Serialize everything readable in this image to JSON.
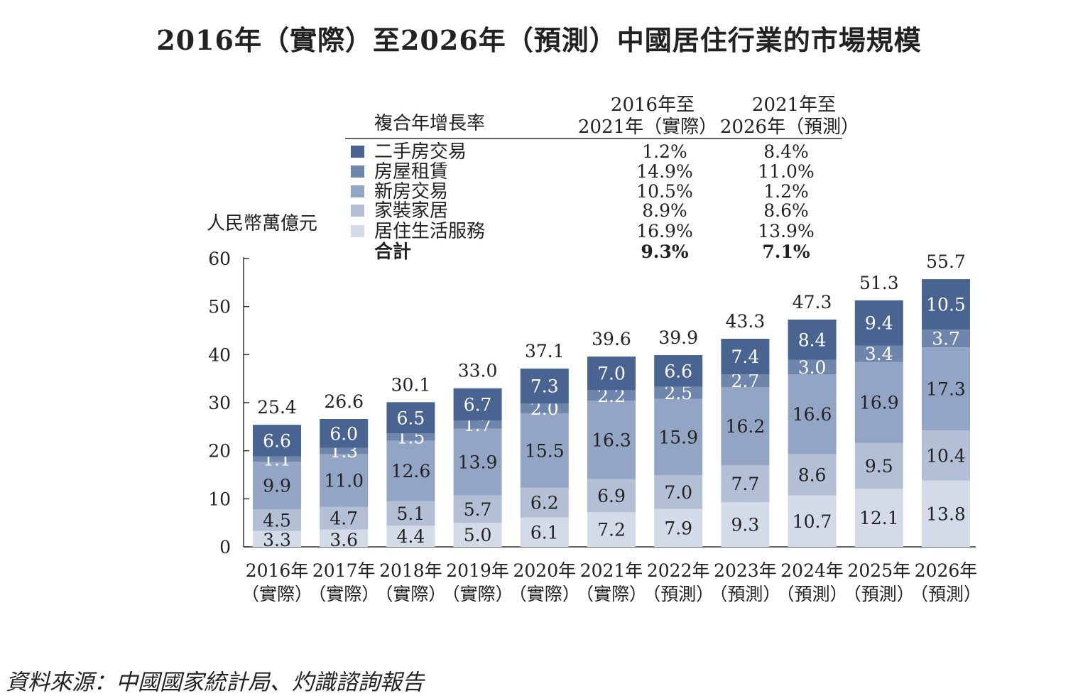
{
  "title": "2016年（實際）至2026年（預測）中國居住行業的市場規模",
  "source": "資料來源：中國國家統計局、灼識諮詢報告",
  "chart_data": {
    "type": "bar",
    "stacked": true,
    "ylabel": "人民幣萬億元",
    "ylim": [
      0,
      60
    ],
    "yticks": [
      "0",
      "10",
      "20",
      "30",
      "40",
      "50",
      "60"
    ],
    "categories": [
      [
        "2016年",
        "（實際）"
      ],
      [
        "2017年",
        "（實際）"
      ],
      [
        "2018年",
        "（實際）"
      ],
      [
        "2019年",
        "（實際）"
      ],
      [
        "2020年",
        "（實際）"
      ],
      [
        "2021年",
        "（實際）"
      ],
      [
        "2022年",
        "（預測）"
      ],
      [
        "2023年",
        "（預測）"
      ],
      [
        "2024年",
        "（預測）"
      ],
      [
        "2025年",
        "（預測）"
      ],
      [
        "2026年",
        "（預測）"
      ]
    ],
    "series": [
      {
        "name": "居住生活服務",
        "color": "#d4dbe8",
        "values": [
          3.3,
          3.6,
          4.4,
          5.0,
          6.1,
          7.2,
          7.9,
          9.3,
          10.7,
          12.1,
          13.8
        ]
      },
      {
        "name": "家裝家居",
        "color": "#b2bfd5",
        "values": [
          4.5,
          4.7,
          5.1,
          5.7,
          6.2,
          6.9,
          7.0,
          7.7,
          8.6,
          9.5,
          10.4
        ]
      },
      {
        "name": "新房交易",
        "color": "#93a5c4",
        "values": [
          9.9,
          11.0,
          12.6,
          13.9,
          15.5,
          16.3,
          15.9,
          16.2,
          16.6,
          16.9,
          17.3
        ]
      },
      {
        "name": "房屋租賃",
        "color": "#6f86ac",
        "values": [
          1.1,
          1.3,
          1.5,
          1.7,
          2.0,
          2.2,
          2.5,
          2.7,
          3.0,
          3.4,
          3.7
        ]
      },
      {
        "name": "二手房交易",
        "color": "#4a6491",
        "values": [
          6.6,
          6.0,
          6.5,
          6.7,
          7.3,
          7.0,
          6.6,
          7.4,
          8.4,
          9.4,
          10.5
        ]
      }
    ],
    "totals": [
      "25.4",
      "26.6",
      "30.1",
      "33.0",
      "37.1",
      "39.6",
      "39.9",
      "43.3",
      "47.3",
      "51.3",
      "55.7"
    ],
    "legend_table": {
      "header": "複合年增長率",
      "col1": [
        "2016年至",
        "2021年（實際）"
      ],
      "col2": [
        "2021年至",
        "2026年（預測）"
      ],
      "rows": [
        {
          "name": "二手房交易",
          "color": "#4a6491",
          "c1": "1.2%",
          "c2": "8.4%"
        },
        {
          "name": "房屋租賃",
          "color": "#6f86ac",
          "c1": "14.9%",
          "c2": "11.0%"
        },
        {
          "name": "新房交易",
          "color": "#93a5c4",
          "c1": "10.5%",
          "c2": "1.2%"
        },
        {
          "name": "家裝家居",
          "color": "#b2bfd5",
          "c1": "8.9%",
          "c2": "8.6%"
        },
        {
          "name": "居住生活服務",
          "color": "#d4dbe8",
          "c1": "16.9%",
          "c2": "13.9%"
        }
      ],
      "total": {
        "name": "合計",
        "c1": "9.3%",
        "c2": "7.1%"
      }
    }
  }
}
